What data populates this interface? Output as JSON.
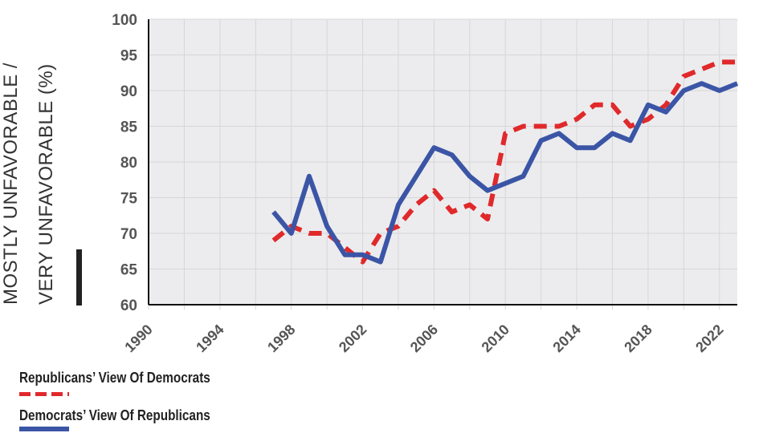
{
  "chart_data": {
    "type": "line",
    "ylabel_lines": [
      "MOSTLY UNFAVORABLE /",
      "VERY UNFAVORABLE (%)"
    ],
    "xlim": [
      1990,
      2023
    ],
    "ylim": [
      60,
      100
    ],
    "x_ticks": [
      1990,
      1994,
      1998,
      2002,
      2006,
      2010,
      2014,
      2018,
      2022
    ],
    "y_ticks": [
      60,
      65,
      70,
      75,
      80,
      85,
      90,
      95,
      100
    ],
    "grid": true,
    "legend_position": "bottom-left",
    "x": [
      1997,
      1998,
      1999,
      2000,
      2001,
      2002,
      2003,
      2004,
      2005,
      2006,
      2007,
      2008,
      2009,
      2010,
      2011,
      2012,
      2013,
      2014,
      2015,
      2016,
      2017,
      2018,
      2019,
      2020,
      2021,
      2022,
      2023
    ],
    "series": [
      {
        "name": "Republicans’ View Of Democrats",
        "color": "#e0292b",
        "style": "dashed",
        "values": [
          69,
          71,
          70,
          70,
          68,
          66,
          70,
          71,
          74,
          76,
          73,
          74,
          72,
          84,
          85,
          85,
          85,
          86,
          88,
          88,
          85,
          86,
          88,
          92,
          93,
          94,
          94
        ]
      },
      {
        "name": "Democrats’ View Of Republicans",
        "color": "#3b55a6",
        "style": "solid",
        "values": [
          73,
          70,
          78,
          71,
          67,
          67,
          66,
          74,
          78,
          82,
          81,
          78,
          76,
          77,
          78,
          83,
          84,
          82,
          82,
          84,
          83,
          88,
          87,
          90,
          91,
          90,
          91
        ]
      }
    ]
  }
}
